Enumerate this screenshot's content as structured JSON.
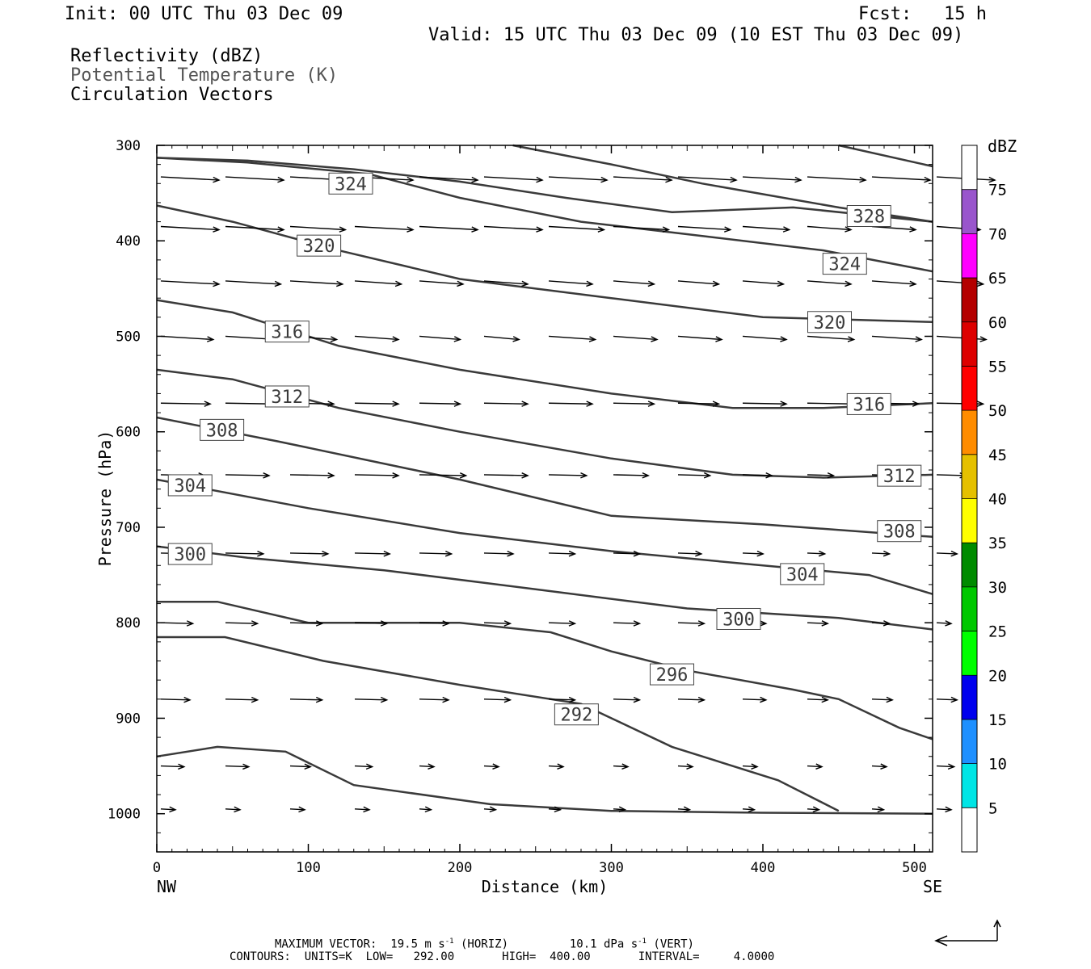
{
  "header": {
    "init": "Init: 00 UTC Thu 03 Dec 09",
    "fcst": "Fcst:   15 h",
    "valid": "Valid: 15 UTC Thu 03 Dec 09 (10 EST Thu 03 Dec 09)",
    "fields": [
      "Reflectivity (dBZ)",
      "Potential Temperature (K)",
      "Circulation Vectors"
    ]
  },
  "chart_data": {
    "type": "line",
    "ylabel": "Pressure (hPa)",
    "xlabel": "Distance (km)",
    "xlim": [
      0,
      512
    ],
    "ylim": [
      1040,
      300
    ],
    "x_ticks": [
      0,
      100,
      200,
      300,
      400,
      500
    ],
    "y_ticks": [
      300,
      400,
      500,
      600,
      700,
      800,
      900,
      1000
    ],
    "x_end_labels": {
      "left": "NW",
      "right": "SE"
    },
    "series": [
      {
        "name": "292",
        "points": [
          [
            0,
            940
          ],
          [
            40,
            930
          ],
          [
            85,
            935
          ],
          [
            130,
            970
          ],
          [
            220,
            990
          ],
          [
            300,
            997
          ],
          [
            400,
            999
          ],
          [
            512,
            1000
          ]
        ]
      },
      {
        "name": "296",
        "points": [
          [
            0,
            815
          ],
          [
            45,
            815
          ],
          [
            110,
            840
          ],
          [
            200,
            865
          ],
          [
            280,
            885
          ],
          [
            340,
            930
          ],
          [
            410,
            965
          ],
          [
            450,
            997
          ]
        ]
      },
      {
        "name": "300",
        "points": [
          [
            0,
            778
          ],
          [
            40,
            778
          ],
          [
            100,
            800
          ],
          [
            200,
            800
          ],
          [
            260,
            810
          ],
          [
            300,
            830
          ],
          [
            350,
            850
          ],
          [
            420,
            870
          ],
          [
            450,
            880
          ],
          [
            490,
            910
          ],
          [
            512,
            922
          ]
        ]
      },
      {
        "name": "304",
        "points": [
          [
            0,
            720
          ],
          [
            60,
            732
          ],
          [
            150,
            745
          ],
          [
            250,
            765
          ],
          [
            350,
            785
          ],
          [
            450,
            795
          ],
          [
            512,
            807
          ]
        ]
      },
      {
        "name": "308",
        "points": [
          [
            0,
            650
          ],
          [
            100,
            680
          ],
          [
            200,
            706
          ],
          [
            300,
            725
          ],
          [
            400,
            740
          ],
          [
            470,
            750
          ],
          [
            512,
            770
          ]
        ]
      },
      {
        "name": "312",
        "points": [
          [
            0,
            585
          ],
          [
            80,
            610
          ],
          [
            200,
            650
          ],
          [
            300,
            688
          ],
          [
            400,
            697
          ],
          [
            512,
            710
          ]
        ]
      },
      {
        "name": "316",
        "points": [
          [
            0,
            535
          ],
          [
            50,
            545
          ],
          [
            120,
            575
          ],
          [
            200,
            600
          ],
          [
            300,
            628
          ],
          [
            380,
            645
          ],
          [
            440,
            648
          ],
          [
            512,
            645
          ]
        ]
      },
      {
        "name": "320",
        "points": [
          [
            0,
            462
          ],
          [
            50,
            475
          ],
          [
            120,
            510
          ],
          [
            200,
            535
          ],
          [
            300,
            560
          ],
          [
            380,
            575
          ],
          [
            440,
            575
          ],
          [
            512,
            570
          ]
        ]
      },
      {
        "name": "324",
        "points": [
          [
            0,
            363
          ],
          [
            50,
            380
          ],
          [
            120,
            410
          ],
          [
            200,
            440
          ],
          [
            300,
            460
          ],
          [
            400,
            480
          ],
          [
            512,
            485
          ]
        ]
      },
      {
        "name": "328",
        "points": [
          [
            0,
            313
          ],
          [
            60,
            318
          ],
          [
            140,
            330
          ],
          [
            200,
            355
          ],
          [
            280,
            380
          ],
          [
            360,
            395
          ],
          [
            440,
            410
          ],
          [
            512,
            432
          ]
        ]
      },
      {
        "name": "",
        "points": [
          [
            0,
            313
          ],
          [
            60,
            316
          ],
          [
            130,
            325
          ],
          [
            200,
            338
          ],
          [
            270,
            355
          ],
          [
            340,
            370
          ],
          [
            420,
            365
          ],
          [
            512,
            380
          ]
        ]
      },
      {
        "name": "",
        "points": [
          [
            235,
            300
          ],
          [
            300,
            320
          ],
          [
            360,
            340
          ],
          [
            450,
            365
          ],
          [
            512,
            380
          ]
        ]
      },
      {
        "name": "",
        "points": [
          [
            450,
            300
          ],
          [
            512,
            322
          ]
        ]
      }
    ],
    "contour_labels": [
      {
        "text": "324",
        "x": 128,
        "y": 340
      },
      {
        "text": "320",
        "x": 107,
        "y": 405
      },
      {
        "text": "316",
        "x": 86,
        "y": 495
      },
      {
        "text": "312",
        "x": 86,
        "y": 563
      },
      {
        "text": "308",
        "x": 43,
        "y": 598
      },
      {
        "text": "304",
        "x": 22,
        "y": 656
      },
      {
        "text": "300",
        "x": 22,
        "y": 728
      },
      {
        "text": "328",
        "x": 470,
        "y": 374
      },
      {
        "text": "324",
        "x": 454,
        "y": 424
      },
      {
        "text": "320",
        "x": 444,
        "y": 485
      },
      {
        "text": "316",
        "x": 470,
        "y": 571
      },
      {
        "text": "312",
        "x": 490,
        "y": 646
      },
      {
        "text": "308",
        "x": 490,
        "y": 704
      },
      {
        "text": "304",
        "x": 426,
        "y": 749
      },
      {
        "text": "300",
        "x": 384,
        "y": 796
      },
      {
        "text": "296",
        "x": 340,
        "y": 854
      },
      {
        "text": "292",
        "x": 277,
        "y": 896
      }
    ],
    "colorbar": {
      "title": "dBZ",
      "levels": [
        5,
        10,
        15,
        20,
        25,
        30,
        35,
        40,
        45,
        50,
        55,
        60,
        65,
        70,
        75
      ],
      "colors": [
        "#ffffff",
        "#00e5e5",
        "#1e90ff",
        "#0000ee",
        "#00ff00",
        "#00c800",
        "#008b00",
        "#ffff00",
        "#e5c000",
        "#ff8c00",
        "#ff0000",
        "#dd0000",
        "#b40000",
        "#ff00ff",
        "#9955cc",
        "#ffffff"
      ]
    },
    "vector_rows": [
      {
        "p": 333,
        "dxs": [
          40,
          40,
          38,
          40,
          40,
          40,
          40,
          40,
          40,
          40,
          40,
          40,
          40
        ]
      },
      {
        "p": 385,
        "dxs": [
          40,
          40,
          38,
          40,
          40,
          40,
          38,
          38,
          36,
          32,
          30,
          30,
          30
        ]
      },
      {
        "p": 442,
        "dxs": [
          40,
          38,
          36,
          32,
          30,
          30,
          30,
          28,
          28,
          28,
          30,
          30,
          32
        ]
      },
      {
        "p": 500,
        "dxs": [
          36,
          35,
          32,
          30,
          28,
          24,
          32,
          30,
          30,
          30,
          32,
          34,
          34
        ]
      },
      {
        "p": 570,
        "dxs": [
          34,
          33,
          30,
          30,
          28,
          30,
          30,
          28,
          28,
          30,
          32,
          32,
          32
        ]
      },
      {
        "p": 645,
        "dxs": [
          30,
          30,
          30,
          30,
          32,
          30,
          26,
          24,
          22,
          20,
          18,
          18,
          20
        ]
      },
      {
        "p": 727,
        "dxs": [
          26,
          26,
          26,
          24,
          22,
          20,
          18,
          18,
          16,
          14,
          12,
          12,
          14
        ]
      },
      {
        "p": 800,
        "dxs": [
          22,
          22,
          22,
          22,
          20,
          18,
          18,
          18,
          18,
          16,
          14,
          12,
          10
        ]
      },
      {
        "p": 880,
        "dxs": [
          20,
          22,
          22,
          22,
          20,
          18,
          18,
          18,
          18,
          16,
          14,
          14,
          14
        ]
      },
      {
        "p": 950,
        "dxs": [
          16,
          16,
          14,
          12,
          10,
          10,
          10,
          10,
          10,
          10,
          10,
          10,
          12
        ]
      },
      {
        "p": 995,
        "dxs": [
          10,
          10,
          10,
          10,
          8,
          8,
          8,
          8,
          8,
          8,
          8,
          8,
          10
        ]
      }
    ]
  },
  "footer": {
    "line1_a": "MAXIMUM VECTOR:  19.5 m s",
    "line1_b": " (HORIZ)         10.1 dPa s",
    "line1_c": " (VERT)",
    "sup": "-1",
    "line2": "CONTOURS:  UNITS=K  LOW=   292.00       HIGH=  400.00       INTERVAL=     4.0000"
  }
}
